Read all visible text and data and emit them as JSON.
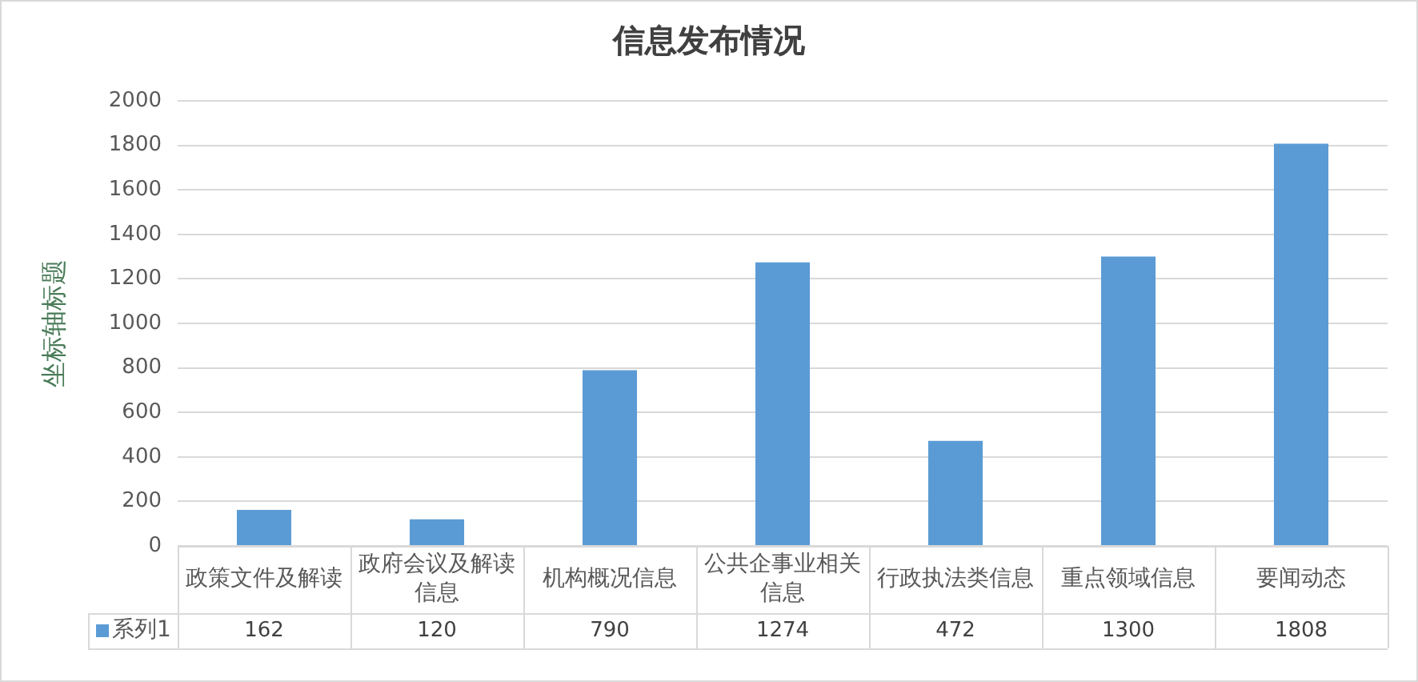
{
  "chart_data": {
    "type": "bar",
    "title": "信息发布情况",
    "ylabel": "坐标轴标题",
    "categories": [
      "政策文件及解读",
      "政府会议及解读信息",
      "机构概况信息",
      "公共企事业相关信息",
      "行政执法类信息",
      "重点领域信息",
      "要闻动态"
    ],
    "series": [
      {
        "name": "系列1",
        "color": "#5b9bd5",
        "values": [
          162,
          120,
          790,
          1274,
          472,
          1300,
          1808
        ]
      }
    ],
    "ylim": [
      0,
      2000
    ],
    "yticks": [
      0,
      200,
      400,
      600,
      800,
      1000,
      1200,
      1400,
      1600,
      1800,
      2000
    ],
    "grid": "y",
    "legend": "bottom left",
    "data_labels": true
  }
}
